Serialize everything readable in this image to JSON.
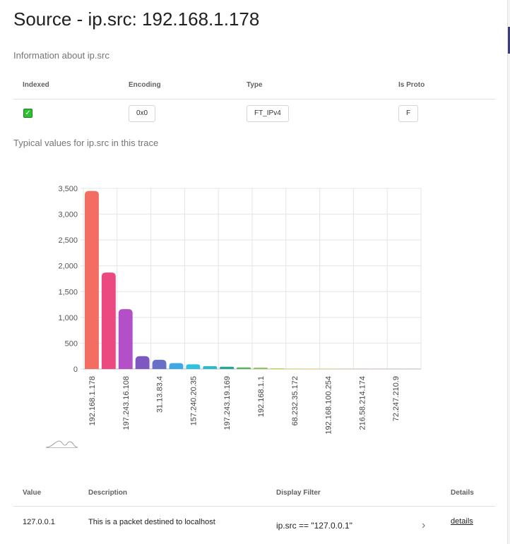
{
  "page": {
    "title": "Source - ip.src: 192.168.1.178",
    "info_heading": "Information about ip.src",
    "typical_heading": "Typical values for ip.src in this trace"
  },
  "info_table": {
    "headers": [
      "Indexed",
      "Encoding",
      "Type",
      "Is Proto"
    ],
    "row": {
      "indexed": true,
      "encoding": "0x0",
      "type": "FT_IPv4",
      "is_proto": "F"
    }
  },
  "chart_data": {
    "type": "bar",
    "title": "",
    "xlabel": "",
    "ylabel": "",
    "ylim": [
      0,
      3500
    ],
    "yticks": [
      "0",
      "500",
      "1,000",
      "1,500",
      "2,000",
      "2,500",
      "3,000",
      "3,500"
    ],
    "categories": [
      "192.168.1.178",
      "",
      "197.243.16.108",
      "",
      "31.13.83.4",
      "",
      "157.240.20.35",
      "",
      "197.243.19.169",
      "",
      "192.168.1.1",
      "",
      "68.232.35.172",
      "",
      "192.168.100.254",
      "",
      "216.58.214.174",
      "",
      "72.247.210.9",
      ""
    ],
    "values": [
      3450,
      1870,
      1160,
      250,
      180,
      115,
      90,
      55,
      45,
      30,
      25,
      15,
      10,
      8,
      6,
      4,
      3,
      2,
      1,
      1
    ],
    "colors": [
      "#f46d62",
      "#ec4980",
      "#b34fc7",
      "#7e57c2",
      "#6a6fc6",
      "#3fa9e6",
      "#2ec2e0",
      "#29bdcf",
      "#26a69a",
      "#55b45a",
      "#8bc34a",
      "#c3d24a",
      "#e8d84a",
      "#f2c94a",
      "#f5b04a",
      "#f49a48",
      "#ee8350",
      "#e8735a",
      "#dd6a6a",
      "#d06a76"
    ],
    "grid": true,
    "legend": "none"
  },
  "values_table": {
    "headers": [
      "Value",
      "Description",
      "Display Filter",
      "Details"
    ],
    "rows": [
      {
        "value": "127.0.0.1",
        "description": "This is a packet destined to localhost",
        "filter": "ip.src == \"127.0.0.1\"",
        "details": "details"
      }
    ]
  },
  "icons": {
    "chevron": "chevron-right-icon",
    "check": "checkbox-checked-icon",
    "wave": "sparkline-icon"
  }
}
